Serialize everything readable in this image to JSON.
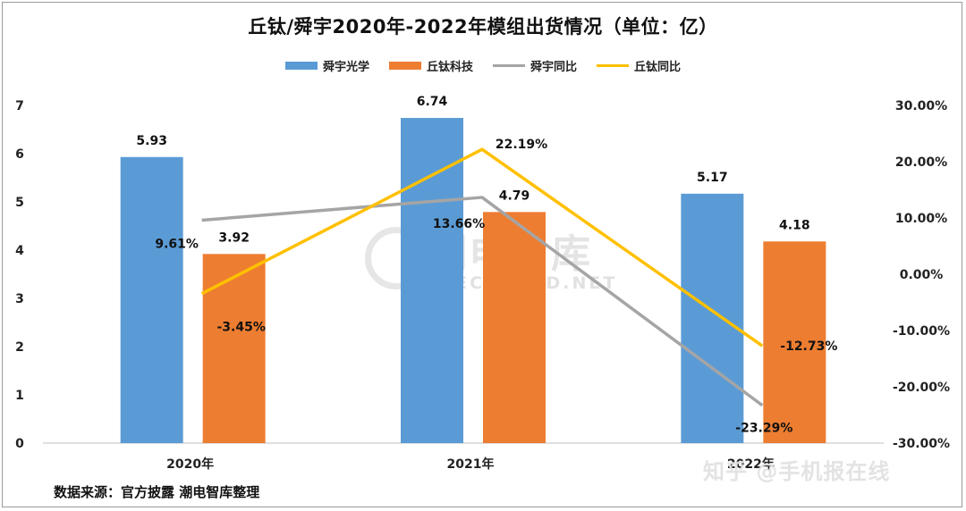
{
  "chart_data": {
    "type": "bar",
    "title": "丘钛/舜宇2020年-2022年模组出货情况（单位：亿）",
    "categories": [
      "2020年",
      "2021年",
      "2022年"
    ],
    "series": [
      {
        "name": "舜宇光学",
        "kind": "bar",
        "axis": "left",
        "values": [
          5.93,
          6.74,
          5.17
        ],
        "labels": [
          "5.93",
          "6.74",
          "5.17"
        ],
        "color": "#5B9BD5"
      },
      {
        "name": "丘钛科技",
        "kind": "bar",
        "axis": "left",
        "values": [
          3.92,
          4.79,
          4.18
        ],
        "labels": [
          "3.92",
          "4.79",
          "4.18"
        ],
        "color": "#ED7D31"
      },
      {
        "name": "舜宇同比",
        "kind": "line",
        "axis": "right",
        "values": [
          9.61,
          13.66,
          -23.29
        ],
        "labels": [
          "9.61%",
          "13.66%",
          "-23.29%"
        ],
        "color": "#A5A5A5"
      },
      {
        "name": "丘钛同比",
        "kind": "line",
        "axis": "right",
        "values": [
          -3.45,
          22.19,
          -12.73
        ],
        "labels": [
          "-3.45%",
          "22.19%",
          "-12.73%"
        ],
        "color": "#FFC000"
      }
    ],
    "ylim": [
      0,
      7
    ],
    "y_ticks": [
      "0",
      "1",
      "2",
      "3",
      "4",
      "5",
      "6",
      "7"
    ],
    "y2lim": [
      -30,
      30
    ],
    "y2_ticks": [
      "-30.00%",
      "-20.00%",
      "-10.00%",
      "0.00%",
      "10.00%",
      "20.00%",
      "30.00%"
    ],
    "legend_position": "top-center",
    "grid": false
  },
  "footer": {
    "source": "数据来源：官方披露 潮电智库整理",
    "credit": "知乎 @手机报在线"
  },
  "watermark": {
    "main": "潮电智库",
    "sub": "ELECTREND.NET"
  }
}
